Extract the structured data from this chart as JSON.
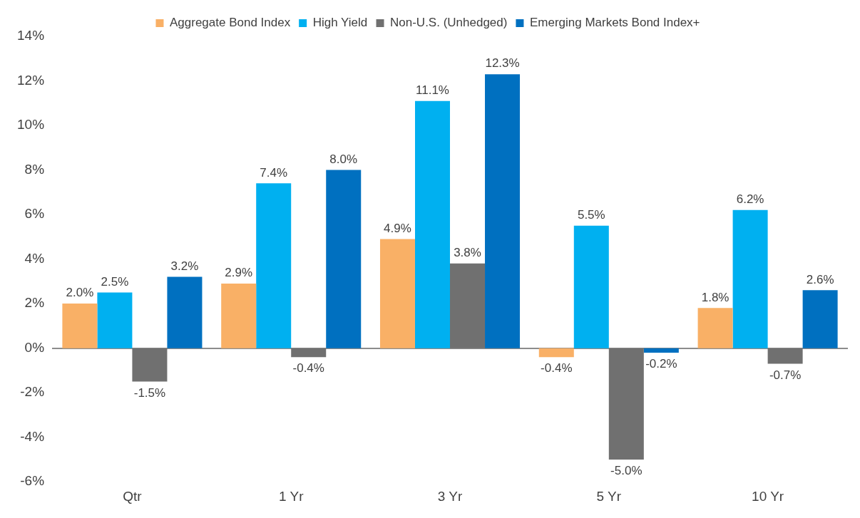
{
  "chart_data": {
    "type": "bar",
    "categories": [
      "Qtr",
      "1 Yr",
      "3 Yr",
      "5 Yr",
      "10 Yr"
    ],
    "series": [
      {
        "name": "Aggregate Bond Index",
        "color": "#f9b066",
        "values": [
          2.0,
          2.9,
          4.9,
          -0.4,
          1.8
        ],
        "value_labels": [
          "2.0%",
          "2.9%",
          "4.9%",
          "-0.4%",
          "1.8%"
        ]
      },
      {
        "name": "High Yield",
        "color": "#00b0f0",
        "values": [
          2.5,
          7.4,
          11.1,
          5.5,
          6.2
        ],
        "value_labels": [
          "2.5%",
          "7.4%",
          "11.1%",
          "5.5%",
          "6.2%"
        ]
      },
      {
        "name": "Non-U.S. (Unhedged)",
        "color": "#707070",
        "values": [
          -1.5,
          -0.4,
          3.8,
          -5.0,
          -0.7
        ],
        "value_labels": [
          "-1.5%",
          "-0.4%",
          "3.8%",
          "-5.0%",
          "-0.7%"
        ]
      },
      {
        "name": "Emerging Markets Bond Index+",
        "color": "#0070c0",
        "values": [
          3.2,
          8.0,
          12.3,
          -0.2,
          2.6
        ],
        "value_labels": [
          "3.2%",
          "8.0%",
          "12.3%",
          "-0.2%",
          "2.6%"
        ]
      }
    ],
    "ylim": [
      -6,
      14
    ],
    "yticks": [
      {
        "value": -6,
        "label": "-6%"
      },
      {
        "value": -4,
        "label": "-4%"
      },
      {
        "value": -2,
        "label": "-2%"
      },
      {
        "value": 0,
        "label": "0%"
      },
      {
        "value": 2,
        "label": "2%"
      },
      {
        "value": 4,
        "label": "4%"
      },
      {
        "value": 6,
        "label": "6%"
      },
      {
        "value": 8,
        "label": "8%"
      },
      {
        "value": 10,
        "label": "10%"
      },
      {
        "value": 12,
        "label": "12%"
      },
      {
        "value": 14,
        "label": "14%"
      }
    ],
    "legend": "top"
  }
}
